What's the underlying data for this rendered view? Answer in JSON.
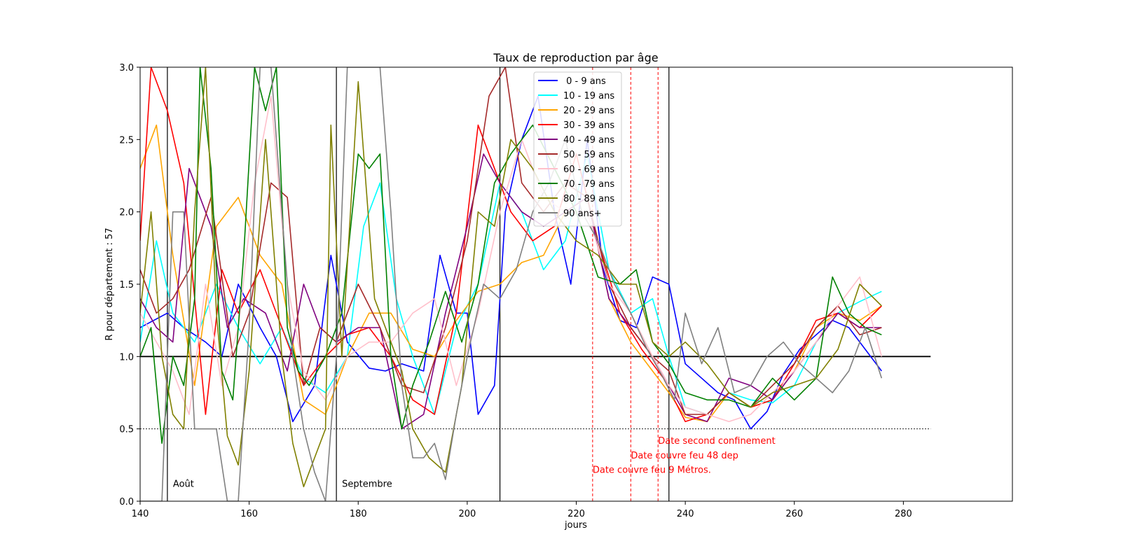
{
  "chart_data": {
    "type": "line",
    "title": "Taux de reproduction par âge",
    "xlabel": "jours",
    "ylabel": "R pour département : 57",
    "xlim": [
      140,
      300
    ],
    "ylim": [
      0,
      3
    ],
    "xticks": [
      "140",
      "160",
      "180",
      "200",
      "220",
      "240",
      "260",
      "280"
    ],
    "yticks": [
      "0.0",
      "0.5",
      "1.0",
      "1.5",
      "2.0",
      "2.5",
      "3.0"
    ],
    "grid": false,
    "legend_position": "top-center",
    "reference_lines": [
      {
        "y": 1.0,
        "style": "solid",
        "color": "#000000",
        "x_from": 140,
        "x_to": 285
      },
      {
        "y": 0.5,
        "style": "dotted",
        "color": "#000000",
        "x_from": 140,
        "x_to": 285
      }
    ],
    "month_markers": [
      {
        "x": 145,
        "label": "Août"
      },
      {
        "x": 176,
        "label": "Septembre"
      },
      {
        "x": 206,
        "label": ""
      },
      {
        "x": 237,
        "label": ""
      }
    ],
    "events": [
      {
        "x": 223,
        "y": 0.22,
        "label": "Date couvre feu 9 Métros."
      },
      {
        "x": 230,
        "y": 0.32,
        "label": "Date couvre feu 48 dep"
      },
      {
        "x": 235,
        "y": 0.42,
        "label": "Date second confinement"
      }
    ],
    "event_line_x": [
      223,
      230,
      235
    ],
    "series": [
      {
        "name": " 0 - 9 ans",
        "color": "#0000ff",
        "x": [
          140,
          145,
          148,
          152,
          155,
          158,
          162,
          165,
          168,
          172,
          175,
          178,
          182,
          185,
          188,
          192,
          195,
          198,
          200,
          202,
          205,
          207,
          210,
          213,
          216,
          219,
          222,
          225,
          228,
          231,
          234,
          237,
          240,
          243,
          246,
          249,
          252,
          255,
          258,
          261,
          264,
          267,
          270,
          273,
          276
        ],
        "y": [
          1.2,
          1.3,
          1.2,
          1.1,
          1.0,
          1.5,
          1.2,
          1.0,
          0.55,
          0.8,
          1.7,
          1.1,
          0.92,
          0.9,
          0.95,
          0.9,
          1.7,
          1.3,
          1.3,
          0.6,
          0.8,
          2.0,
          2.5,
          2.8,
          2.0,
          1.5,
          2.5,
          1.6,
          1.25,
          1.2,
          1.55,
          1.5,
          0.95,
          0.85,
          0.75,
          0.7,
          0.5,
          0.62,
          0.88,
          1.05,
          1.15,
          1.25,
          1.2,
          1.05,
          0.9
        ]
      },
      {
        "name": "10 - 19 ans",
        "color": "#00ffff",
        "x": [
          140,
          143,
          146,
          150,
          154,
          158,
          162,
          166,
          170,
          174,
          178,
          181,
          184,
          187,
          190,
          194,
          198,
          202,
          206,
          210,
          214,
          218,
          222,
          226,
          230,
          234,
          237,
          240,
          244,
          248,
          252,
          256,
          260,
          264,
          268,
          272,
          276
        ],
        "y": [
          1.1,
          1.8,
          1.3,
          1.1,
          1.5,
          1.2,
          0.95,
          1.2,
          0.85,
          0.75,
          1.0,
          1.9,
          2.2,
          1.4,
          1.0,
          0.6,
          1.2,
          1.5,
          2.2,
          2.0,
          1.6,
          1.8,
          2.4,
          1.6,
          1.3,
          1.4,
          1.0,
          0.65,
          0.6,
          0.75,
          0.7,
          0.68,
          0.8,
          1.1,
          1.3,
          1.38,
          1.45
        ]
      },
      {
        "name": "20 - 29 ans",
        "color": "#ffa500",
        "x": [
          140,
          143,
          146,
          150,
          154,
          158,
          162,
          166,
          170,
          174,
          178,
          182,
          186,
          190,
          194,
          198,
          202,
          206,
          210,
          214,
          218,
          222,
          226,
          230,
          234,
          237,
          240,
          244,
          248,
          252,
          256,
          260,
          264,
          268,
          272,
          276
        ],
        "y": [
          2.3,
          2.6,
          1.7,
          0.8,
          1.9,
          2.1,
          1.7,
          1.5,
          0.7,
          0.6,
          1.0,
          1.3,
          1.3,
          1.05,
          1.0,
          1.25,
          1.45,
          1.5,
          1.65,
          1.7,
          2.0,
          2.1,
          1.4,
          1.1,
          0.9,
          0.75,
          0.58,
          0.55,
          0.75,
          0.65,
          0.7,
          0.9,
          1.2,
          1.3,
          1.25,
          1.35
        ]
      },
      {
        "name": "30 - 39 ans",
        "color": "#ff0000",
        "x": [
          140,
          142,
          145,
          148,
          152,
          155,
          158,
          162,
          166,
          170,
          174,
          178,
          182,
          186,
          190,
          194,
          198,
          202,
          205,
          208,
          212,
          216,
          220,
          224,
          228,
          232,
          236,
          240,
          244,
          248,
          252,
          256,
          260,
          264,
          268,
          272,
          276
        ],
        "y": [
          1.8,
          3.0,
          2.7,
          2.2,
          0.6,
          1.6,
          1.3,
          1.6,
          1.2,
          0.8,
          1.0,
          1.15,
          1.2,
          1.0,
          0.7,
          0.6,
          1.3,
          2.6,
          2.3,
          2.0,
          1.8,
          1.9,
          2.4,
          1.8,
          1.3,
          1.05,
          0.85,
          0.55,
          0.6,
          0.75,
          0.65,
          0.7,
          0.95,
          1.25,
          1.3,
          1.2,
          1.35
        ]
      },
      {
        "name": "40 - 49 ans",
        "color": "#800080",
        "x": [
          140,
          143,
          146,
          149,
          153,
          156,
          159,
          163,
          167,
          170,
          173,
          176,
          180,
          184,
          188,
          192,
          196,
          200,
          203,
          206,
          210,
          214,
          218,
          222,
          226,
          230,
          234,
          237,
          240,
          244,
          248,
          252,
          256,
          260,
          264,
          268,
          272,
          276
        ],
        "y": [
          1.4,
          1.2,
          1.1,
          2.3,
          1.9,
          1.2,
          1.4,
          1.3,
          0.9,
          1.5,
          1.2,
          1.1,
          1.2,
          1.2,
          0.5,
          0.6,
          1.3,
          1.9,
          2.4,
          2.2,
          2.0,
          1.9,
          2.0,
          2.1,
          1.4,
          1.2,
          1.0,
          0.8,
          0.6,
          0.55,
          0.85,
          0.8,
          0.7,
          0.9,
          1.1,
          1.3,
          1.2,
          1.2
        ]
      },
      {
        "name": "50 - 59 ans",
        "color": "#a52a2a",
        "x": [
          140,
          143,
          146,
          149,
          153,
          157,
          160,
          164,
          167,
          170,
          173,
          176,
          180,
          184,
          188,
          192,
          196,
          200,
          204,
          207,
          210,
          214,
          218,
          222,
          226,
          230,
          234,
          237,
          240,
          244,
          248,
          252,
          256,
          260,
          264,
          268,
          272,
          276
        ],
        "y": [
          1.6,
          1.3,
          1.4,
          1.6,
          2.1,
          1.0,
          1.3,
          2.2,
          2.1,
          0.8,
          1.2,
          1.1,
          1.5,
          1.2,
          0.8,
          0.75,
          1.2,
          1.8,
          2.8,
          3.0,
          2.2,
          2.0,
          2.2,
          2.1,
          1.5,
          1.2,
          1.0,
          0.9,
          0.6,
          0.6,
          0.75,
          0.65,
          0.8,
          0.95,
          1.2,
          1.35,
          1.15,
          1.2
        ]
      },
      {
        "name": "60 - 69 ans",
        "color": "#ffc0cb",
        "x": [
          140,
          143,
          146,
          149,
          152,
          155,
          158,
          161,
          164,
          167,
          170,
          174,
          178,
          182,
          186,
          190,
          194,
          198,
          202,
          206,
          210,
          214,
          218,
          222,
          226,
          230,
          234,
          237,
          240,
          244,
          248,
          252,
          256,
          260,
          264,
          268,
          272,
          276
        ],
        "y": [
          1.3,
          1.1,
          0.9,
          0.6,
          1.5,
          0.8,
          1.2,
          2.2,
          2.8,
          1.5,
          0.9,
          0.7,
          1.0,
          1.1,
          1.1,
          1.3,
          1.4,
          0.8,
          1.3,
          2.0,
          2.5,
          2.1,
          2.0,
          2.0,
          1.5,
          1.3,
          1.0,
          0.8,
          0.65,
          0.6,
          0.55,
          0.6,
          0.75,
          0.9,
          1.1,
          1.35,
          1.55,
          1.0
        ]
      },
      {
        "name": "70 - 79 ans",
        "color": "#008000",
        "x": [
          140,
          142,
          144,
          146,
          148,
          150,
          151,
          153,
          155,
          157,
          159,
          161,
          163,
          165,
          167,
          169,
          171,
          174,
          177,
          180,
          182,
          184,
          186,
          188,
          190,
          193,
          196,
          199,
          202,
          205,
          208,
          212,
          216,
          220,
          224,
          228,
          231,
          234,
          237,
          240,
          244,
          248,
          252,
          256,
          260,
          264,
          267,
          270,
          273,
          276
        ],
        "y": [
          1.0,
          1.2,
          0.4,
          1.0,
          0.8,
          1.4,
          3.0,
          2.3,
          0.9,
          0.7,
          1.7,
          3.0,
          2.7,
          3.0,
          1.2,
          0.9,
          0.8,
          1.0,
          1.3,
          2.4,
          2.3,
          2.4,
          1.0,
          0.5,
          0.8,
          1.1,
          1.45,
          1.1,
          1.5,
          2.2,
          2.4,
          2.6,
          2.3,
          2.0,
          1.55,
          1.5,
          1.6,
          1.1,
          0.95,
          0.75,
          0.7,
          0.7,
          0.65,
          0.85,
          0.7,
          0.85,
          1.55,
          1.3,
          1.2,
          1.15
        ]
      },
      {
        "name": "80 - 89 ans",
        "color": "#808000",
        "x": [
          140,
          142,
          144,
          146,
          148,
          150,
          152,
          154,
          156,
          158,
          160,
          163,
          166,
          168,
          170,
          172,
          174,
          175,
          177,
          180,
          183,
          186,
          188,
          190,
          193,
          196,
          199,
          202,
          205,
          208,
          212,
          216,
          220,
          224,
          228,
          231,
          234,
          237,
          240,
          244,
          248,
          252,
          256,
          260,
          264,
          268,
          272,
          276
        ],
        "y": [
          1.3,
          2.0,
          1.0,
          0.6,
          0.5,
          2.0,
          3.0,
          1.3,
          0.45,
          0.25,
          0.9,
          2.5,
          1.0,
          0.4,
          0.1,
          0.3,
          0.5,
          2.6,
          1.0,
          2.9,
          1.4,
          1.1,
          0.9,
          0.5,
          0.3,
          0.2,
          0.8,
          2.0,
          1.9,
          2.5,
          2.3,
          2.0,
          1.8,
          1.7,
          1.5,
          1.5,
          1.1,
          1.0,
          1.1,
          0.95,
          0.75,
          0.65,
          0.75,
          0.8,
          0.85,
          1.05,
          1.5,
          1.35
        ]
      },
      {
        "name": "90 ans+",
        "color": "#808080",
        "x": [
          140,
          142,
          144,
          146,
          148,
          150,
          152,
          154,
          156,
          158,
          160,
          162,
          164,
          166,
          168,
          170,
          172,
          174,
          176,
          178,
          180,
          182,
          184,
          186,
          188,
          190,
          192,
          194,
          196,
          198,
          200,
          203,
          206,
          209,
          212,
          215,
          218,
          221,
          224,
          227,
          230,
          233,
          236,
          238,
          240,
          243,
          246,
          249,
          252,
          255,
          258,
          261,
          264,
          267,
          270,
          273,
          276
        ],
        "y": [
          0.0,
          0.0,
          0.0,
          2.0,
          2.0,
          0.5,
          0.5,
          0.5,
          0.0,
          0.0,
          1.2,
          3.0,
          3.0,
          2.0,
          1.0,
          0.5,
          0.2,
          0.0,
          1.0,
          3.0,
          3.0,
          3.0,
          3.0,
          2.0,
          0.8,
          0.3,
          0.3,
          0.4,
          0.15,
          0.6,
          1.0,
          1.5,
          1.4,
          1.6,
          2.0,
          2.2,
          2.5,
          2.0,
          1.8,
          1.5,
          1.3,
          1.05,
          0.85,
          0.7,
          1.3,
          0.95,
          1.2,
          0.75,
          0.8,
          1.0,
          1.1,
          0.95,
          0.85,
          0.75,
          0.9,
          1.2,
          0.85
        ]
      }
    ]
  }
}
